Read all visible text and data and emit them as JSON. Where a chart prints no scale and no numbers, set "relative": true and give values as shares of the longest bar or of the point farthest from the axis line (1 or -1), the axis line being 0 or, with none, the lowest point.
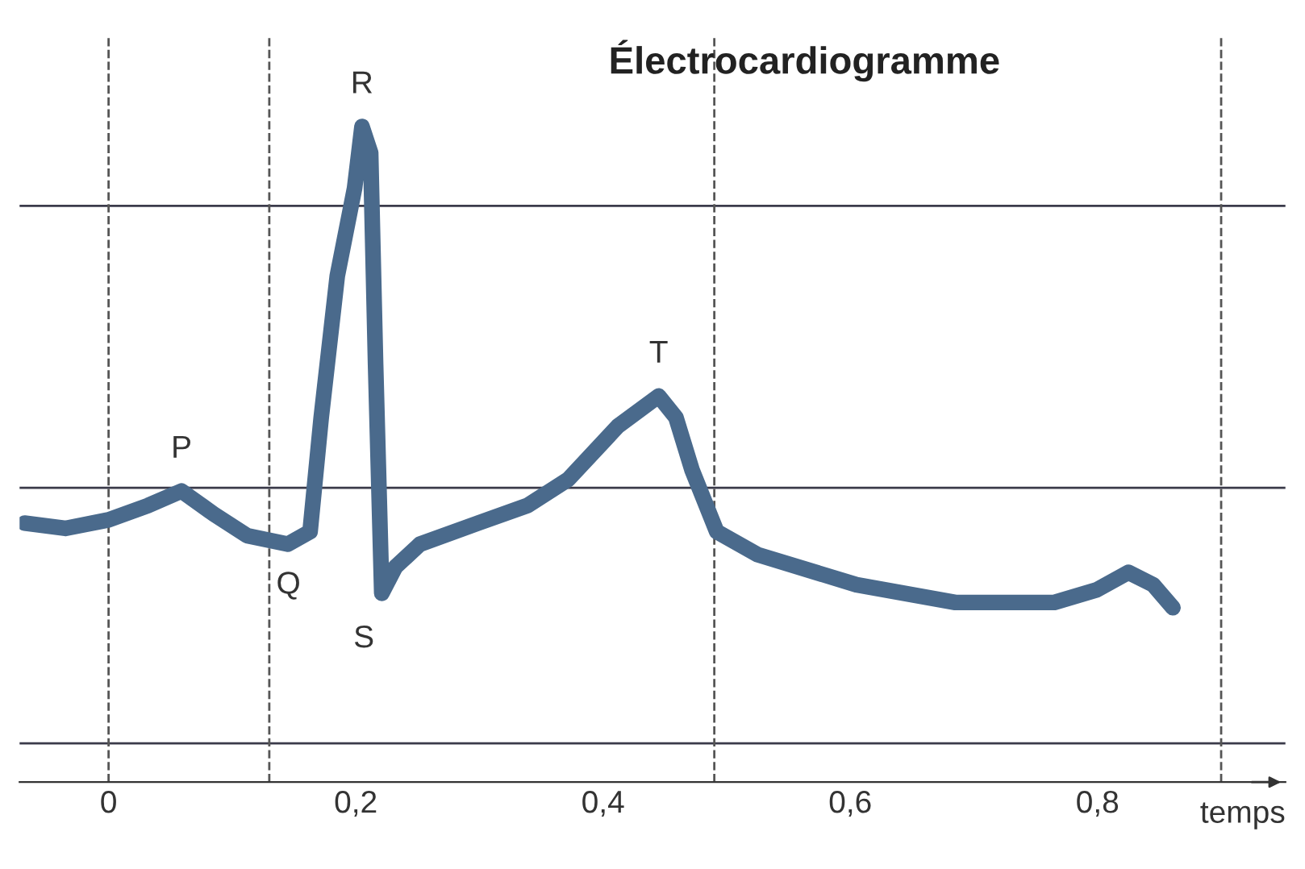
{
  "chart_data": {
    "type": "line",
    "title": "Électrocardiogramme",
    "xlabel": "temps",
    "relative": true,
    "x": [
      -0.068,
      -0.035,
      0,
      0.032,
      0.059,
      0.085,
      0.112,
      0.145,
      0.163,
      0.172,
      0.185,
      0.199,
      0.205,
      0.212,
      0.216,
      0.221,
      0.232,
      0.252,
      0.299,
      0.339,
      0.372,
      0.412,
      0.445,
      0.459,
      0.472,
      0.492,
      0.525,
      0.605,
      0.685,
      0.765,
      0.799,
      0.825,
      0.845,
      0.861
    ],
    "series": [
      {
        "color": "#4a6a8c",
        "values": [
          0.395,
          0.387,
          0.4,
          0.422,
          0.444,
          0.409,
          0.376,
          0.363,
          0.382,
          0.556,
          0.772,
          0.906,
          1.0,
          0.96,
          0.637,
          0.288,
          0.328,
          0.363,
          0.395,
          0.422,
          0.462,
          0.543,
          0.589,
          0.556,
          0.476,
          0.382,
          0.347,
          0.301,
          0.274,
          0.274,
          0.293,
          0.32,
          0.301,
          0.266
        ]
      }
    ],
    "xlim": [
      -0.072,
      0.952
    ],
    "xticks": [
      0,
      {
        "value": 0.2,
        "label": "0,2"
      },
      {
        "value": 0.4,
        "label": "0,4"
      },
      {
        "value": 0.6,
        "label": "0,6"
      },
      {
        "value": 0.8,
        "label": "0,8"
      }
    ],
    "ref_lines": [
      {
        "axis": "y",
        "value": 0.879,
        "color": "#3a3a4a",
        "line_style": "solid"
      },
      {
        "axis": "y",
        "value": 0.449,
        "color": "#3a3a4a",
        "line_style": "solid"
      },
      {
        "axis": "y",
        "value": 0.059,
        "color": "#3a3a4a",
        "line_style": "solid"
      },
      {
        "axis": "x",
        "value": 0,
        "color": "#555555",
        "line_style": "dashed"
      },
      {
        "axis": "x",
        "value": 0.13,
        "color": "#555555",
        "line_style": "dashed"
      },
      {
        "axis": "x",
        "value": 0.49,
        "color": "#555555",
        "line_style": "dashed"
      },
      {
        "axis": "x",
        "value": 0.9,
        "color": "#555555",
        "line_style": "dashed"
      }
    ],
    "annotations": [
      {
        "text": "P",
        "x": 0.059,
        "y": 0.444
      },
      {
        "text": "Q",
        "x": 0.16,
        "y": 0.37
      },
      {
        "text": "R",
        "x": 0.205,
        "y": 1.0
      },
      {
        "text": "S",
        "x": 0.221,
        "y": 0.288
      },
      {
        "text": "T",
        "x": 0.445,
        "y": 0.589
      }
    ],
    "grid": false,
    "legend": false,
    "marker": "none",
    "line_style": "solid"
  }
}
